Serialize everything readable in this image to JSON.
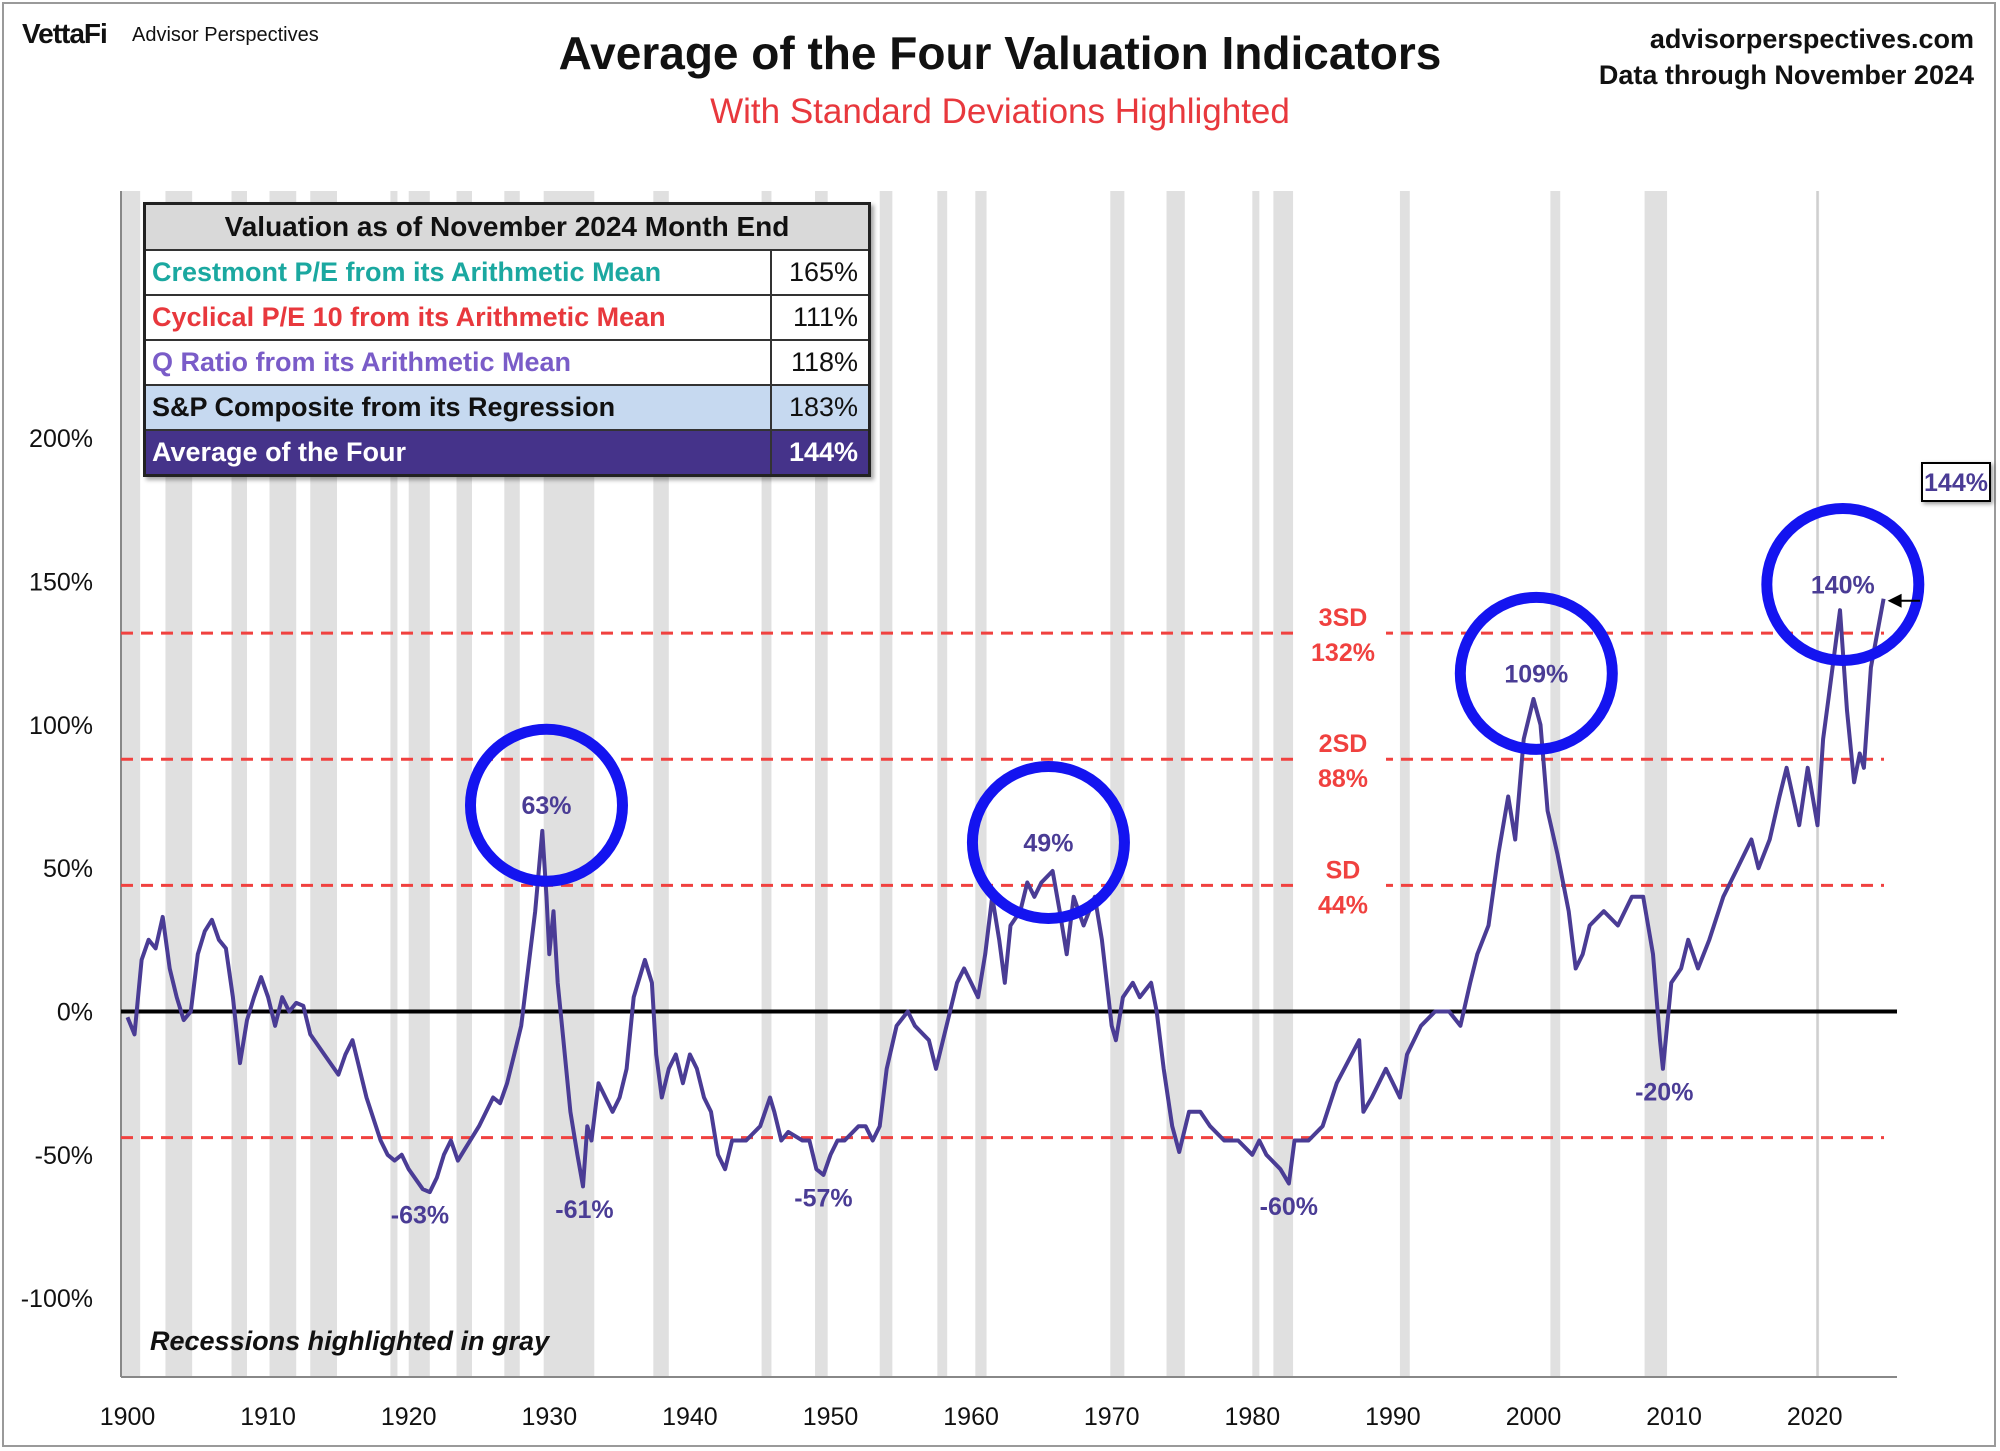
{
  "header": {
    "logo": "VettaFi",
    "logo_sub": "Advisor Perspectives",
    "site": "advisorperspectives.com",
    "data_through": "Data through November 2024"
  },
  "table": {
    "title": "Valuation as of November 2024 Month End",
    "rows": [
      {
        "label": "Crestmont P/E from its Arithmetic Mean",
        "value": "165%",
        "color": "#1ba8a0",
        "bg": "#ffffff"
      },
      {
        "label": "Cyclical P/E 10 from its Arithmetic Mean",
        "value": "111%",
        "color": "#e8383d",
        "bg": "#ffffff"
      },
      {
        "label": "Q Ratio from its Arithmetic Mean",
        "value": "118%",
        "color": "#7a5cc8",
        "bg": "#ffffff"
      },
      {
        "label": "S&P Composite from its Regression",
        "value": "183%",
        "color": "#111111",
        "bg": "#c6d9f0"
      },
      {
        "label": "Average of the Four",
        "value": "144%",
        "color": "#ffffff",
        "bg": "#45338a"
      }
    ]
  },
  "note": "Recessions highlighted  in gray",
  "colors": {
    "line": "#4a3c95",
    "sd": "#f0413f",
    "circle": "#1414f0",
    "recession": "#e0e0e0"
  },
  "chart_data": {
    "type": "line",
    "title": "Average of the Four Valuation Indicators",
    "subtitle": "With Standard Deviations Highlighted",
    "xlim": [
      1898.5,
      2026.5
    ],
    "ylim": [
      -100,
      225
    ],
    "x_ticks": [
      1900,
      1910,
      1920,
      1930,
      1940,
      1950,
      1960,
      1970,
      1980,
      1990,
      2000,
      2010,
      2020
    ],
    "y_ticks": [
      {
        "v": -100,
        "label": "-100%"
      },
      {
        "v": -50,
        "label": "-50%"
      },
      {
        "v": 0,
        "label": "0%"
      },
      {
        "v": 50,
        "label": "50%"
      },
      {
        "v": 100,
        "label": "100%"
      },
      {
        "v": 150,
        "label": "150%"
      },
      {
        "v": 200,
        "label": "200%"
      }
    ],
    "sd_lines": [
      {
        "v": 132,
        "name": "3SD",
        "label": "132%"
      },
      {
        "v": 88,
        "name": "2SD",
        "label": "88%"
      },
      {
        "v": 44,
        "name": "SD",
        "label": "44%"
      },
      {
        "v": -44,
        "name": "",
        "label": ""
      }
    ],
    "recessions": [
      [
        1899.5,
        1900.9
      ],
      [
        1902.7,
        1904.6
      ],
      [
        1907.4,
        1908.5
      ],
      [
        1910.1,
        1912.0
      ],
      [
        1913.0,
        1914.9
      ],
      [
        1918.7,
        1919.2
      ],
      [
        1920.0,
        1921.5
      ],
      [
        1923.4,
        1924.5
      ],
      [
        1926.8,
        1927.9
      ],
      [
        1929.6,
        1933.2
      ],
      [
        1937.4,
        1938.5
      ],
      [
        1945.1,
        1945.8
      ],
      [
        1948.9,
        1949.8
      ],
      [
        1953.5,
        1954.4
      ],
      [
        1957.6,
        1958.3
      ],
      [
        1960.3,
        1961.1
      ],
      [
        1969.9,
        1970.9
      ],
      [
        1973.9,
        1975.2
      ],
      [
        1980.0,
        1980.5
      ],
      [
        1981.5,
        1982.9
      ],
      [
        1990.5,
        1991.2
      ],
      [
        2001.2,
        2001.9
      ],
      [
        2007.9,
        2009.5
      ],
      [
        2020.1,
        2020.3
      ]
    ],
    "series": [
      {
        "name": "Average of the Four",
        "points": [
          [
            1900,
            -2
          ],
          [
            1900.5,
            -8
          ],
          [
            1901,
            18
          ],
          [
            1901.5,
            25
          ],
          [
            1902,
            22
          ],
          [
            1902.5,
            33
          ],
          [
            1903,
            15
          ],
          [
            1903.5,
            5
          ],
          [
            1904,
            -3
          ],
          [
            1904.5,
            0
          ],
          [
            1905,
            20
          ],
          [
            1905.5,
            28
          ],
          [
            1906,
            32
          ],
          [
            1906.5,
            25
          ],
          [
            1907,
            22
          ],
          [
            1907.5,
            5
          ],
          [
            1908,
            -18
          ],
          [
            1908.5,
            -3
          ],
          [
            1909,
            5
          ],
          [
            1909.5,
            12
          ],
          [
            1910,
            5
          ],
          [
            1910.5,
            -5
          ],
          [
            1911,
            5
          ],
          [
            1911.5,
            0
          ],
          [
            1912,
            3
          ],
          [
            1912.5,
            2
          ],
          [
            1913,
            -8
          ],
          [
            1914,
            -15
          ],
          [
            1915,
            -22
          ],
          [
            1915.5,
            -15
          ],
          [
            1916,
            -10
          ],
          [
            1916.5,
            -20
          ],
          [
            1917,
            -30
          ],
          [
            1918,
            -45
          ],
          [
            1918.5,
            -50
          ],
          [
            1919,
            -52
          ],
          [
            1919.5,
            -50
          ],
          [
            1920,
            -55
          ],
          [
            1921,
            -62
          ],
          [
            1921.5,
            -63
          ],
          [
            1922,
            -58
          ],
          [
            1922.5,
            -50
          ],
          [
            1923,
            -45
          ],
          [
            1923.5,
            -52
          ],
          [
            1924,
            -48
          ],
          [
            1925,
            -40
          ],
          [
            1926,
            -30
          ],
          [
            1926.5,
            -32
          ],
          [
            1927,
            -25
          ],
          [
            1927.5,
            -15
          ],
          [
            1928,
            -5
          ],
          [
            1928.5,
            15
          ],
          [
            1929,
            35
          ],
          [
            1929.5,
            63
          ],
          [
            1929.8,
            40
          ],
          [
            1930,
            20
          ],
          [
            1930.3,
            35
          ],
          [
            1930.6,
            10
          ],
          [
            1931,
            -10
          ],
          [
            1931.5,
            -35
          ],
          [
            1932,
            -50
          ],
          [
            1932.4,
            -61
          ],
          [
            1932.7,
            -40
          ],
          [
            1933,
            -45
          ],
          [
            1933.5,
            -25
          ],
          [
            1934,
            -30
          ],
          [
            1934.5,
            -35
          ],
          [
            1935,
            -30
          ],
          [
            1935.5,
            -20
          ],
          [
            1936,
            5
          ],
          [
            1936.8,
            18
          ],
          [
            1937.3,
            10
          ],
          [
            1937.6,
            -15
          ],
          [
            1938,
            -30
          ],
          [
            1938.5,
            -20
          ],
          [
            1939,
            -15
          ],
          [
            1939.5,
            -25
          ],
          [
            1940,
            -15
          ],
          [
            1940.5,
            -20
          ],
          [
            1941,
            -30
          ],
          [
            1941.5,
            -35
          ],
          [
            1942,
            -50
          ],
          [
            1942.5,
            -55
          ],
          [
            1943,
            -45
          ],
          [
            1943.5,
            -45
          ],
          [
            1944,
            -45
          ],
          [
            1945,
            -40
          ],
          [
            1945.7,
            -30
          ],
          [
            1946,
            -35
          ],
          [
            1946.5,
            -45
          ],
          [
            1947,
            -42
          ],
          [
            1948,
            -45
          ],
          [
            1948.5,
            -45
          ],
          [
            1949,
            -55
          ],
          [
            1949.5,
            -57
          ],
          [
            1950,
            -50
          ],
          [
            1950.5,
            -45
          ],
          [
            1951,
            -45
          ],
          [
            1952,
            -40
          ],
          [
            1952.5,
            -40
          ],
          [
            1953,
            -45
          ],
          [
            1953.5,
            -40
          ],
          [
            1954,
            -20
          ],
          [
            1954.7,
            -5
          ],
          [
            1955.5,
            0
          ],
          [
            1956,
            -5
          ],
          [
            1957,
            -10
          ],
          [
            1957.5,
            -20
          ],
          [
            1958,
            -10
          ],
          [
            1958.5,
            0
          ],
          [
            1959,
            10
          ],
          [
            1959.5,
            15
          ],
          [
            1960,
            10
          ],
          [
            1960.5,
            5
          ],
          [
            1961,
            20
          ],
          [
            1961.5,
            40
          ],
          [
            1962,
            25
          ],
          [
            1962.4,
            10
          ],
          [
            1962.8,
            30
          ],
          [
            1963.5,
            35
          ],
          [
            1964,
            45
          ],
          [
            1964.5,
            40
          ],
          [
            1965,
            45
          ],
          [
            1965.8,
            49
          ],
          [
            1966.3,
            35
          ],
          [
            1966.8,
            20
          ],
          [
            1967.3,
            40
          ],
          [
            1968,
            30
          ],
          [
            1968.8,
            40
          ],
          [
            1969.3,
            25
          ],
          [
            1970,
            -5
          ],
          [
            1970.3,
            -10
          ],
          [
            1970.8,
            5
          ],
          [
            1971.5,
            10
          ],
          [
            1972,
            5
          ],
          [
            1972.8,
            10
          ],
          [
            1973.2,
            0
          ],
          [
            1973.7,
            -20
          ],
          [
            1974.3,
            -40
          ],
          [
            1974.8,
            -49
          ],
          [
            1975.5,
            -35
          ],
          [
            1976.3,
            -35
          ],
          [
            1977,
            -40
          ],
          [
            1978,
            -45
          ],
          [
            1979,
            -45
          ],
          [
            1980,
            -50
          ],
          [
            1980.5,
            -45
          ],
          [
            1981,
            -50
          ],
          [
            1982,
            -55
          ],
          [
            1982.6,
            -60
          ],
          [
            1983,
            -45
          ],
          [
            1984,
            -45
          ],
          [
            1985,
            -40
          ],
          [
            1986,
            -25
          ],
          [
            1987.6,
            -10
          ],
          [
            1987.9,
            -35
          ],
          [
            1988.5,
            -30
          ],
          [
            1989.5,
            -20
          ],
          [
            1990.5,
            -30
          ],
          [
            1991,
            -15
          ],
          [
            1992,
            -5
          ],
          [
            1993,
            0
          ],
          [
            1994,
            0
          ],
          [
            1994.8,
            -5
          ],
          [
            1995.5,
            10
          ],
          [
            1996,
            20
          ],
          [
            1996.8,
            30
          ],
          [
            1997.5,
            55
          ],
          [
            1998.2,
            75
          ],
          [
            1998.7,
            60
          ],
          [
            1999.3,
            95
          ],
          [
            2000,
            109
          ],
          [
            2000.5,
            100
          ],
          [
            2001,
            70
          ],
          [
            2001.7,
            55
          ],
          [
            2002.5,
            35
          ],
          [
            2003,
            15
          ],
          [
            2003.5,
            20
          ],
          [
            2004,
            30
          ],
          [
            2005,
            35
          ],
          [
            2006,
            30
          ],
          [
            2007,
            40
          ],
          [
            2007.8,
            40
          ],
          [
            2008.5,
            20
          ],
          [
            2009,
            -10
          ],
          [
            2009.2,
            -20
          ],
          [
            2009.8,
            10
          ],
          [
            2010.5,
            15
          ],
          [
            2011,
            25
          ],
          [
            2011.7,
            15
          ],
          [
            2012.5,
            25
          ],
          [
            2013.5,
            40
          ],
          [
            2014.5,
            50
          ],
          [
            2015.5,
            60
          ],
          [
            2016,
            50
          ],
          [
            2016.8,
            60
          ],
          [
            2017.5,
            75
          ],
          [
            2018,
            85
          ],
          [
            2018.9,
            65
          ],
          [
            2019.5,
            85
          ],
          [
            2020.2,
            65
          ],
          [
            2020.6,
            95
          ],
          [
            2021,
            110
          ],
          [
            2021.8,
            140
          ],
          [
            2022.3,
            105
          ],
          [
            2022.8,
            80
          ],
          [
            2023.2,
            90
          ],
          [
            2023.5,
            85
          ],
          [
            2024,
            120
          ],
          [
            2024.9,
            144
          ]
        ]
      }
    ],
    "peak_annotations": [
      {
        "x": 1929.8,
        "y": 73,
        "label": "63%"
      },
      {
        "x": 1965.5,
        "y": 60,
        "label": "49%"
      },
      {
        "x": 2000.2,
        "y": 119,
        "label": "109%"
      },
      {
        "x": 2022.0,
        "y": 150,
        "label": "140%"
      }
    ],
    "trough_annotations": [
      {
        "x": 1920.8,
        "y": -74,
        "label": "-63%"
      },
      {
        "x": 1932.5,
        "y": -72,
        "label": "-61%"
      },
      {
        "x": 1949.5,
        "y": -68,
        "label": "-57%"
      },
      {
        "x": 1982.6,
        "y": -71,
        "label": "-60%"
      },
      {
        "x": 2009.3,
        "y": -31,
        "label": "-20%"
      }
    ],
    "latest": {
      "x": 2024.9,
      "y": 144,
      "label": "144%"
    },
    "recession_note": "Recessions highlighted in gray"
  }
}
